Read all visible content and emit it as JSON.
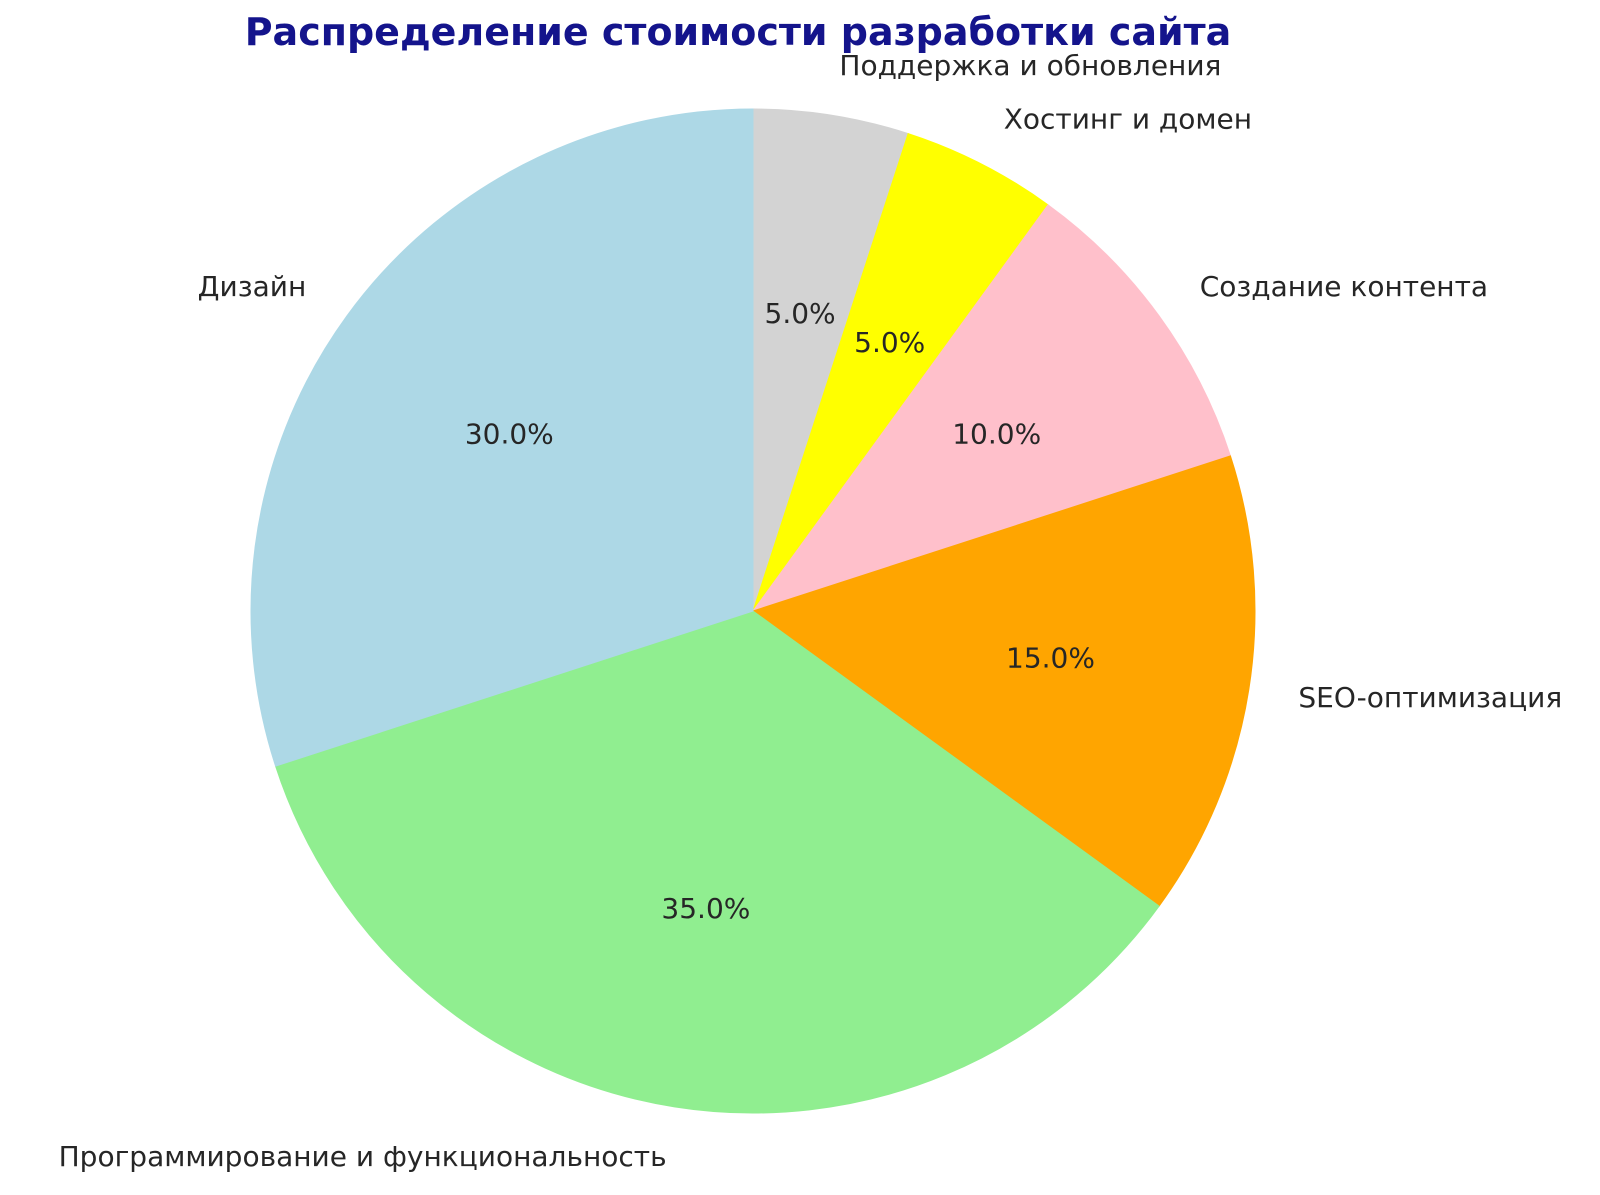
{
  "title": "Распределение стоимости разработки сайта",
  "title_color": "#14148c",
  "label_color": "#262626",
  "chart_data": {
    "type": "pie",
    "title": "Распределение стоимости разработки сайта",
    "labels": [
      "Поддержка и обновления",
      "Хостинг и домен",
      "Создание контента",
      "SEO-оптимизация",
      "Программирование и функциональность",
      "Дизайн"
    ],
    "values": [
      5.0,
      5.0,
      10.0,
      15.0,
      35.0,
      30.0
    ],
    "percent_labels": [
      "5.0%",
      "5.0%",
      "10.0%",
      "15.0%",
      "35.0%",
      "30.0%"
    ],
    "colors": [
      "#d3d3d3",
      "#ffff00",
      "#ffc0cb",
      "#ffa500",
      "#90ee90",
      "#add8e6"
    ],
    "start_angle_deg": 90,
    "counterclock": false,
    "label_distance": 1.1,
    "pct_distance": 0.6,
    "legend": "none",
    "grid": false
  }
}
